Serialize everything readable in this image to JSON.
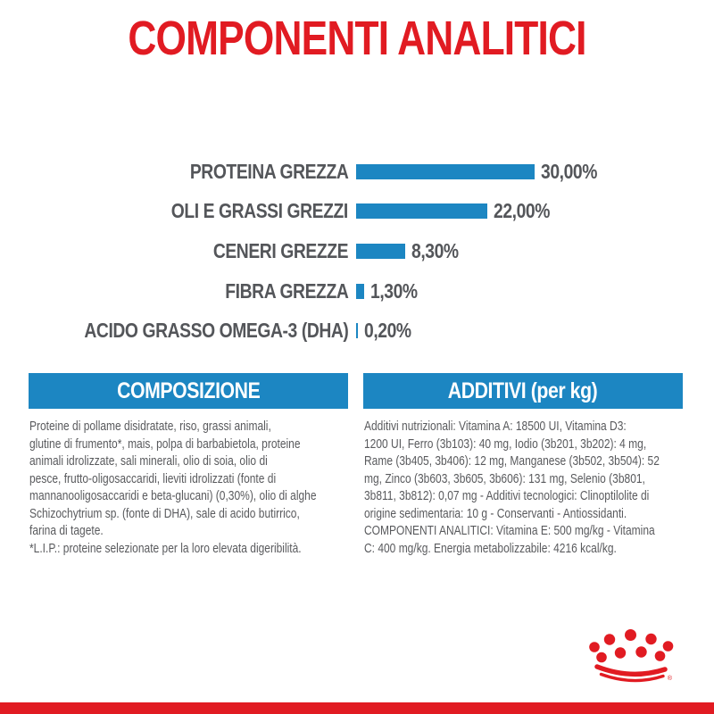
{
  "page": {
    "title": "COMPONENTI ANALITICI",
    "brand_red": "#e11b22",
    "accent_blue": "#1c86c2"
  },
  "chart_data": {
    "type": "bar",
    "orientation": "horizontal",
    "title": "COMPONENTI ANALITICI",
    "categories": [
      "PROTEINA GREZZA",
      "OLI E GRASSI GREZZI",
      "CENERI GREZZE",
      "FIBRA GREZZA",
      "ACIDO GRASSO OMEGA-3 (DHA)"
    ],
    "values": [
      30.0,
      22.0,
      8.3,
      1.3,
      0.2
    ],
    "value_labels": [
      "30,00%",
      "22,00%",
      "8,30%",
      "1,30%",
      "0,20%"
    ],
    "unit": "%",
    "xlim": [
      0,
      30
    ],
    "grid": false,
    "legend": false,
    "bar_color": "#1c86c2",
    "label_color": "#54565a"
  },
  "composition": {
    "header": "COMPOSIZIONE",
    "body": "Proteine di pollame disidratate, riso, grassi animali,\nglutine di frumento*, mais, polpa di barbabietola, proteine\nanimali idrolizzate, sali minerali, olio di soia, olio di\npesce, frutto-oligosaccaridi, lieviti idrolizzati (fonte di\nmannanooligosaccaridi e beta-glucani) (0,30%), olio di alghe\nSchizochytrium sp. (fonte di DHA), sale di acido butirrico,\nfarina di tagete.",
    "footnote": "*L.I.P.: proteine selezionate per la loro elevata digeribilità."
  },
  "additives": {
    "header": "ADDITIVI (per kg)",
    "body": "Additivi nutrizionali: Vitamina A: 18500 UI, Vitamina D3:\n1200 UI, Ferro (3b103): 40 mg, Iodio (3b201, 3b202): 4 mg,\nRame (3b405, 3b406): 12 mg, Manganese (3b502, 3b504): 52\nmg, Zinco (3b603, 3b605, 3b606): 131 mg, Selenio (3b801,\n3b811, 3b812): 0,07 mg - Additivi tecnologici: Clinoptilolite di\norigine sedimentaria: 10 g - Conservanti - Antiossidanti.\nCOMPONENTI ANALITICI: Vitamina E: 500 mg/kg - Vitamina\nC: 400 mg/kg. Energia metabolizzabile: 4216 kcal/kg."
  },
  "footer": {
    "logo": "royal-canin-crown",
    "registered_mark": "®"
  }
}
